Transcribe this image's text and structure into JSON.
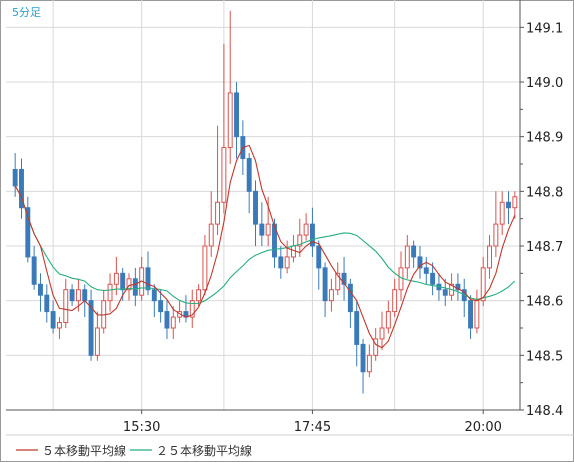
{
  "chart_data": {
    "type": "candlestick",
    "period_label": "5分足",
    "x_tick_labels": [
      "15:30",
      "17:45",
      "20:00"
    ],
    "y_tick_labels": [
      "148.4",
      "148.5",
      "148.6",
      "148.7",
      "148.8",
      "148.9",
      "149.0",
      "149.1"
    ],
    "ylim": [
      148.4,
      149.15
    ],
    "grid": true,
    "legend_position": "bottom-left",
    "colors": {
      "up": "#d9534f",
      "down": "#3a7ab8",
      "ma5": "#c0392b",
      "ma25": "#27ae7f",
      "grid": "#d9d9d9",
      "axis": "#555555"
    },
    "ma5": {
      "name": "５本移動平均線"
    },
    "ma25": {
      "name": "２５本移動平均線"
    },
    "candles": [
      [
        148.84,
        148.81,
        148.87,
        148.79
      ],
      [
        148.84,
        148.77,
        148.86,
        148.75
      ],
      [
        148.77,
        148.68,
        148.79,
        148.67
      ],
      [
        148.68,
        148.63,
        148.7,
        148.62
      ],
      [
        148.63,
        148.61,
        148.65,
        148.58
      ],
      [
        148.61,
        148.58,
        148.63,
        148.56
      ],
      [
        148.58,
        148.55,
        148.6,
        148.54
      ],
      [
        148.55,
        148.56,
        148.57,
        148.53
      ],
      [
        148.56,
        148.62,
        148.64,
        148.55
      ],
      [
        148.62,
        148.6,
        148.63,
        148.59
      ],
      [
        148.6,
        148.62,
        148.64,
        148.58
      ],
      [
        148.62,
        148.6,
        148.63,
        148.57
      ],
      [
        148.6,
        148.5,
        148.62,
        148.49
      ],
      [
        148.5,
        148.55,
        148.58,
        148.49
      ],
      [
        148.55,
        148.6,
        148.62,
        148.54
      ],
      [
        148.6,
        148.63,
        148.65,
        148.58
      ],
      [
        148.63,
        148.65,
        148.68,
        148.61
      ],
      [
        148.65,
        148.62,
        148.66,
        148.6
      ],
      [
        148.62,
        148.64,
        148.65,
        148.6
      ],
      [
        148.64,
        148.61,
        148.66,
        148.59
      ],
      [
        148.61,
        148.66,
        148.68,
        148.6
      ],
      [
        148.66,
        148.62,
        148.69,
        148.61
      ],
      [
        148.62,
        148.6,
        148.63,
        148.57
      ],
      [
        148.6,
        148.58,
        148.62,
        148.56
      ],
      [
        148.58,
        148.55,
        148.6,
        148.53
      ],
      [
        148.55,
        148.57,
        148.59,
        148.53
      ],
      [
        148.57,
        148.58,
        148.6,
        148.56
      ],
      [
        148.58,
        148.57,
        148.61,
        148.56
      ],
      [
        148.57,
        148.6,
        148.62,
        148.55
      ],
      [
        148.6,
        148.62,
        148.63,
        148.59
      ],
      [
        148.62,
        148.7,
        148.72,
        148.61
      ],
      [
        148.7,
        148.74,
        148.8,
        148.68
      ],
      [
        148.74,
        148.78,
        148.92,
        148.72
      ],
      [
        148.78,
        148.88,
        149.07,
        148.76
      ],
      [
        148.88,
        148.98,
        149.13,
        148.85
      ],
      [
        148.98,
        148.9,
        149.0,
        148.86
      ],
      [
        148.9,
        148.86,
        148.93,
        148.83
      ],
      [
        148.86,
        148.8,
        148.87,
        148.76
      ],
      [
        148.8,
        148.74,
        148.82,
        148.7
      ],
      [
        148.74,
        148.72,
        148.78,
        148.7
      ],
      [
        148.72,
        148.74,
        148.79,
        148.7
      ],
      [
        148.74,
        148.68,
        148.75,
        148.66
      ],
      [
        148.68,
        148.66,
        148.7,
        148.64
      ],
      [
        148.66,
        148.68,
        148.71,
        148.65
      ],
      [
        148.68,
        148.7,
        148.72,
        148.67
      ],
      [
        148.7,
        148.72,
        148.75,
        148.68
      ],
      [
        148.72,
        148.74,
        148.76,
        148.71
      ],
      [
        148.74,
        148.7,
        148.77,
        148.68
      ],
      [
        148.7,
        148.66,
        148.71,
        148.62
      ],
      [
        148.66,
        148.6,
        148.67,
        148.57
      ],
      [
        148.6,
        148.62,
        148.64,
        148.58
      ],
      [
        148.62,
        148.65,
        148.67,
        148.61
      ],
      [
        148.65,
        148.63,
        148.68,
        148.6
      ],
      [
        148.63,
        148.58,
        148.64,
        148.55
      ],
      [
        148.58,
        148.52,
        148.6,
        148.48
      ],
      [
        148.52,
        148.47,
        148.53,
        148.43
      ],
      [
        148.47,
        148.5,
        148.52,
        148.46
      ],
      [
        148.5,
        148.53,
        148.55,
        148.49
      ],
      [
        148.53,
        148.55,
        148.58,
        148.51
      ],
      [
        148.55,
        148.58,
        148.6,
        148.54
      ],
      [
        148.58,
        148.62,
        148.64,
        148.57
      ],
      [
        148.62,
        148.66,
        148.69,
        148.6
      ],
      [
        148.66,
        148.7,
        148.72,
        148.64
      ],
      [
        148.7,
        148.68,
        148.71,
        148.66
      ],
      [
        148.68,
        148.66,
        148.7,
        148.64
      ],
      [
        148.66,
        148.65,
        148.68,
        148.63
      ],
      [
        148.65,
        148.63,
        148.67,
        148.61
      ],
      [
        148.63,
        148.62,
        148.65,
        148.6
      ],
      [
        148.62,
        148.61,
        148.64,
        148.59
      ],
      [
        148.61,
        148.63,
        148.65,
        148.6
      ],
      [
        148.63,
        148.62,
        148.65,
        148.6
      ],
      [
        148.62,
        148.6,
        148.64,
        148.57
      ],
      [
        148.6,
        148.55,
        148.61,
        148.53
      ],
      [
        148.55,
        148.6,
        148.62,
        148.54
      ],
      [
        148.6,
        148.66,
        148.68,
        148.59
      ],
      [
        148.66,
        148.7,
        148.72,
        148.64
      ],
      [
        148.7,
        148.74,
        148.8,
        148.68
      ],
      [
        148.74,
        148.78,
        148.8,
        148.72
      ],
      [
        148.78,
        148.77,
        148.8,
        148.74
      ],
      [
        148.77,
        148.79,
        148.8,
        148.75
      ]
    ]
  },
  "legend": [
    {
      "label": "５本移動平均線",
      "color": "#c0392b"
    },
    {
      "label": "２５本移動平均線",
      "color": "#27ae7f"
    }
  ]
}
